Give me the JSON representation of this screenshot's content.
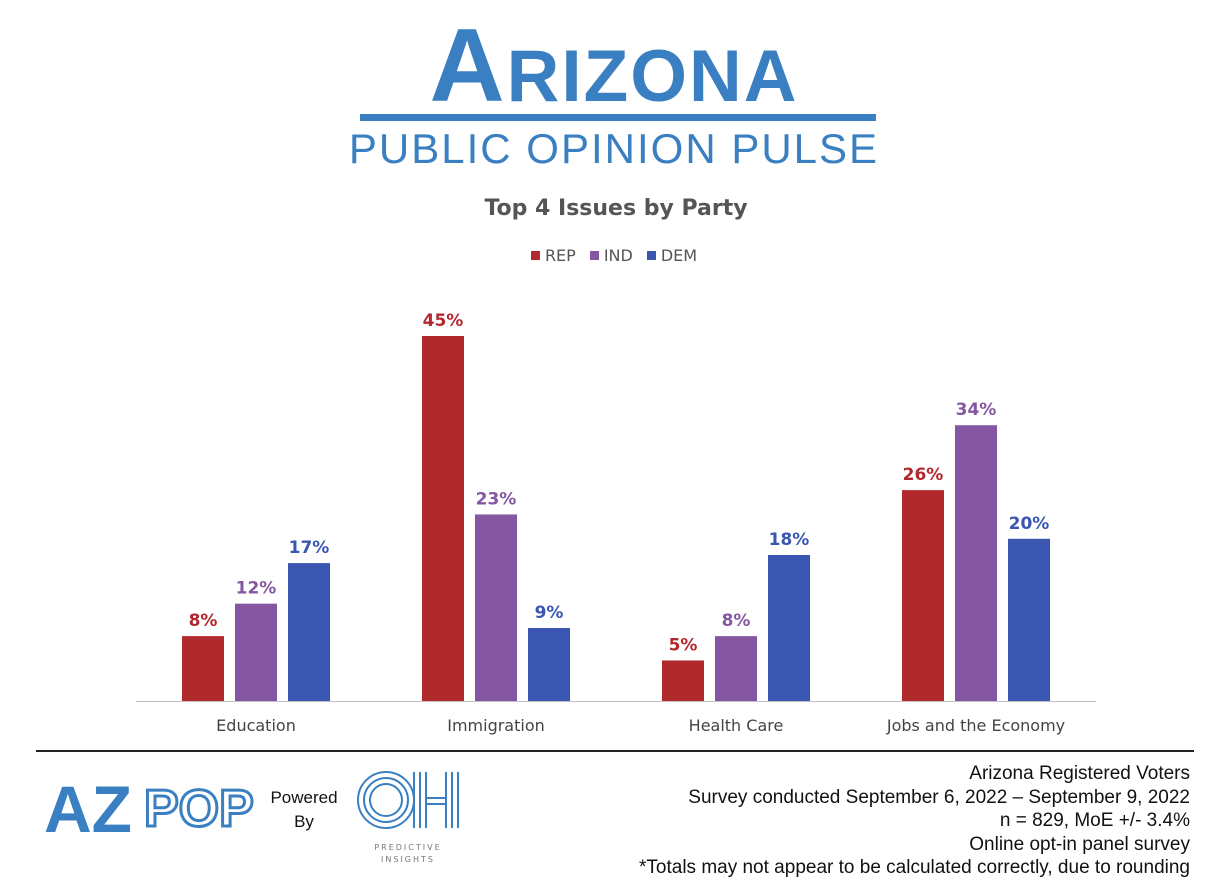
{
  "brand": {
    "title": "Arizona",
    "subtitle": "PUBLIC OPINION PULSE",
    "color": "#3a7fc1"
  },
  "chart_data": {
    "type": "bar",
    "title": "Top 4 Issues by Party",
    "categories": [
      "Education",
      "Immigration",
      "Health Care",
      "Jobs and the Economy"
    ],
    "series": [
      {
        "name": "REP",
        "color": "#b1292d",
        "values": [
          8,
          45,
          5,
          26
        ],
        "labels": [
          "8%",
          "45%",
          "5%",
          "26%"
        ]
      },
      {
        "name": "IND",
        "color": "#8556a1",
        "values": [
          12,
          23,
          8,
          34
        ],
        "labels": [
          "12%",
          "23%",
          "8%",
          "34%"
        ]
      },
      {
        "name": "DEM",
        "color": "#3a56b0",
        "values": [
          17,
          9,
          18,
          20
        ],
        "labels": [
          "17%",
          "9%",
          "18%",
          "20%"
        ]
      }
    ],
    "xlabel": "",
    "ylabel": "",
    "ylim": [
      0,
      50
    ],
    "grid": false,
    "legend_position": "top-center",
    "axis_color": "#bfbfbf"
  },
  "footer": {
    "azpop_logo_text": "AZPOP",
    "powered_by_line1": "Powered",
    "powered_by_line2": "By",
    "oh_logo_text": "OH",
    "oh_logo_caption_line1": "PREDICTIVE",
    "oh_logo_caption_line2": "INSIGHTS",
    "notes": [
      "Arizona Registered Voters",
      "Survey conducted September 6, 2022 – September 9, 2022",
      "n = 829, MoE +/- 3.4%",
      "Online opt-in panel survey",
      "*Totals may not appear to be calculated correctly, due to rounding"
    ]
  }
}
